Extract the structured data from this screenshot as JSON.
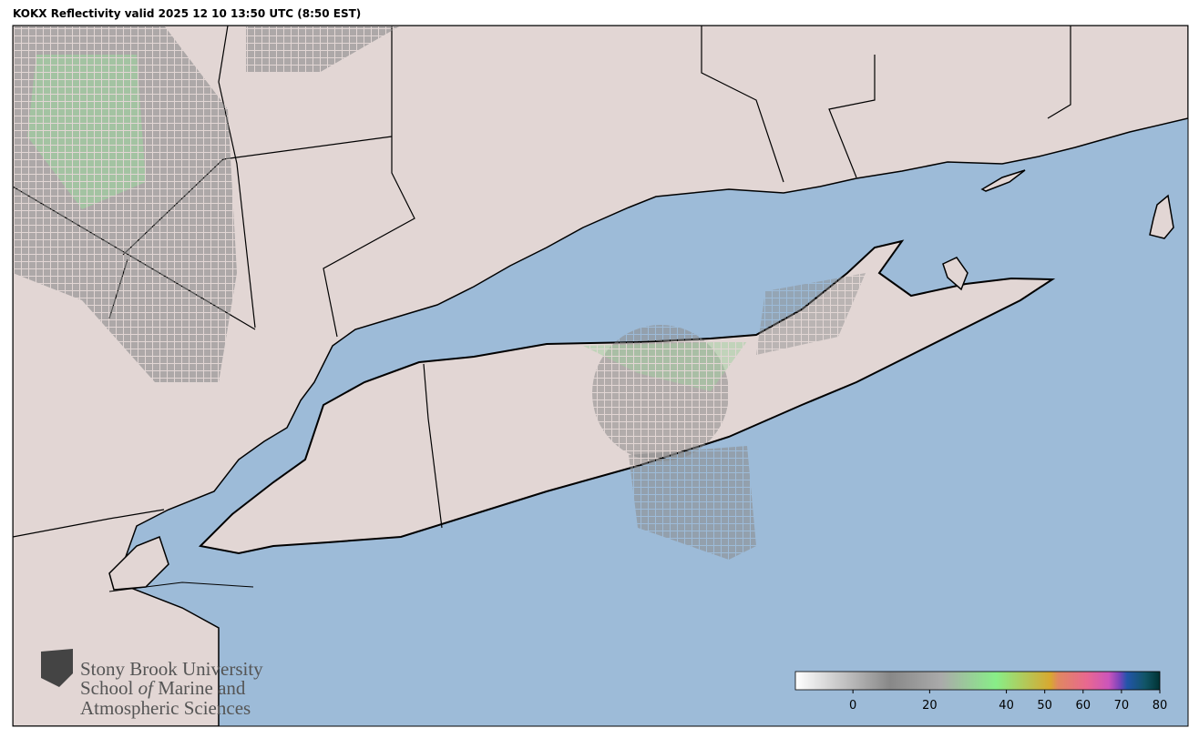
{
  "title": "KOKX Reflectivity valid 2025 12 10 13:50 UTC (8:50 EST)",
  "logo": {
    "line1": "Stony Brook University",
    "line2a": "School",
    "line2b": "of",
    "line2c": "Marine and",
    "line3": "Atmospheric Sciences"
  },
  "colorbar": {
    "lim": [
      -15,
      80
    ],
    "ticks": [
      0,
      20,
      40,
      50,
      60,
      70,
      80
    ]
  }
}
